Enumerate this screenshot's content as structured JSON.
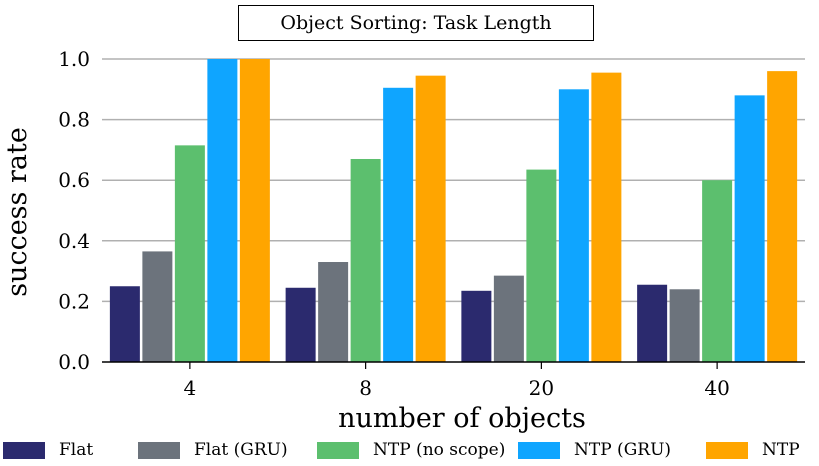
{
  "chart_data": {
    "type": "bar",
    "title": "Object Sorting: Task Length",
    "xlabel": "number of objects",
    "ylabel": "success rate",
    "categories": [
      "4",
      "8",
      "20",
      "40"
    ],
    "ylim": [
      0,
      1.0
    ],
    "yticks": [
      "0.0",
      "0.2",
      "0.4",
      "0.6",
      "0.8",
      "1.0"
    ],
    "grid": "horizontal",
    "legend_position": "bottom",
    "series": [
      {
        "name": "Flat",
        "color": "#2b2a6e",
        "values": [
          0.25,
          0.245,
          0.235,
          0.255
        ]
      },
      {
        "name": "Flat (GRU)",
        "color": "#6c737c",
        "values": [
          0.365,
          0.33,
          0.285,
          0.24
        ]
      },
      {
        "name": "NTP (no scope)",
        "color": "#5cbf6e",
        "values": [
          0.715,
          0.67,
          0.635,
          0.6
        ]
      },
      {
        "name": "NTP (GRU)",
        "color": "#0fa5ff",
        "values": [
          1.0,
          0.905,
          0.9,
          0.88
        ]
      },
      {
        "name": "NTP",
        "color": "#ffa500",
        "values": [
          1.0,
          0.945,
          0.955,
          0.96
        ]
      }
    ]
  }
}
